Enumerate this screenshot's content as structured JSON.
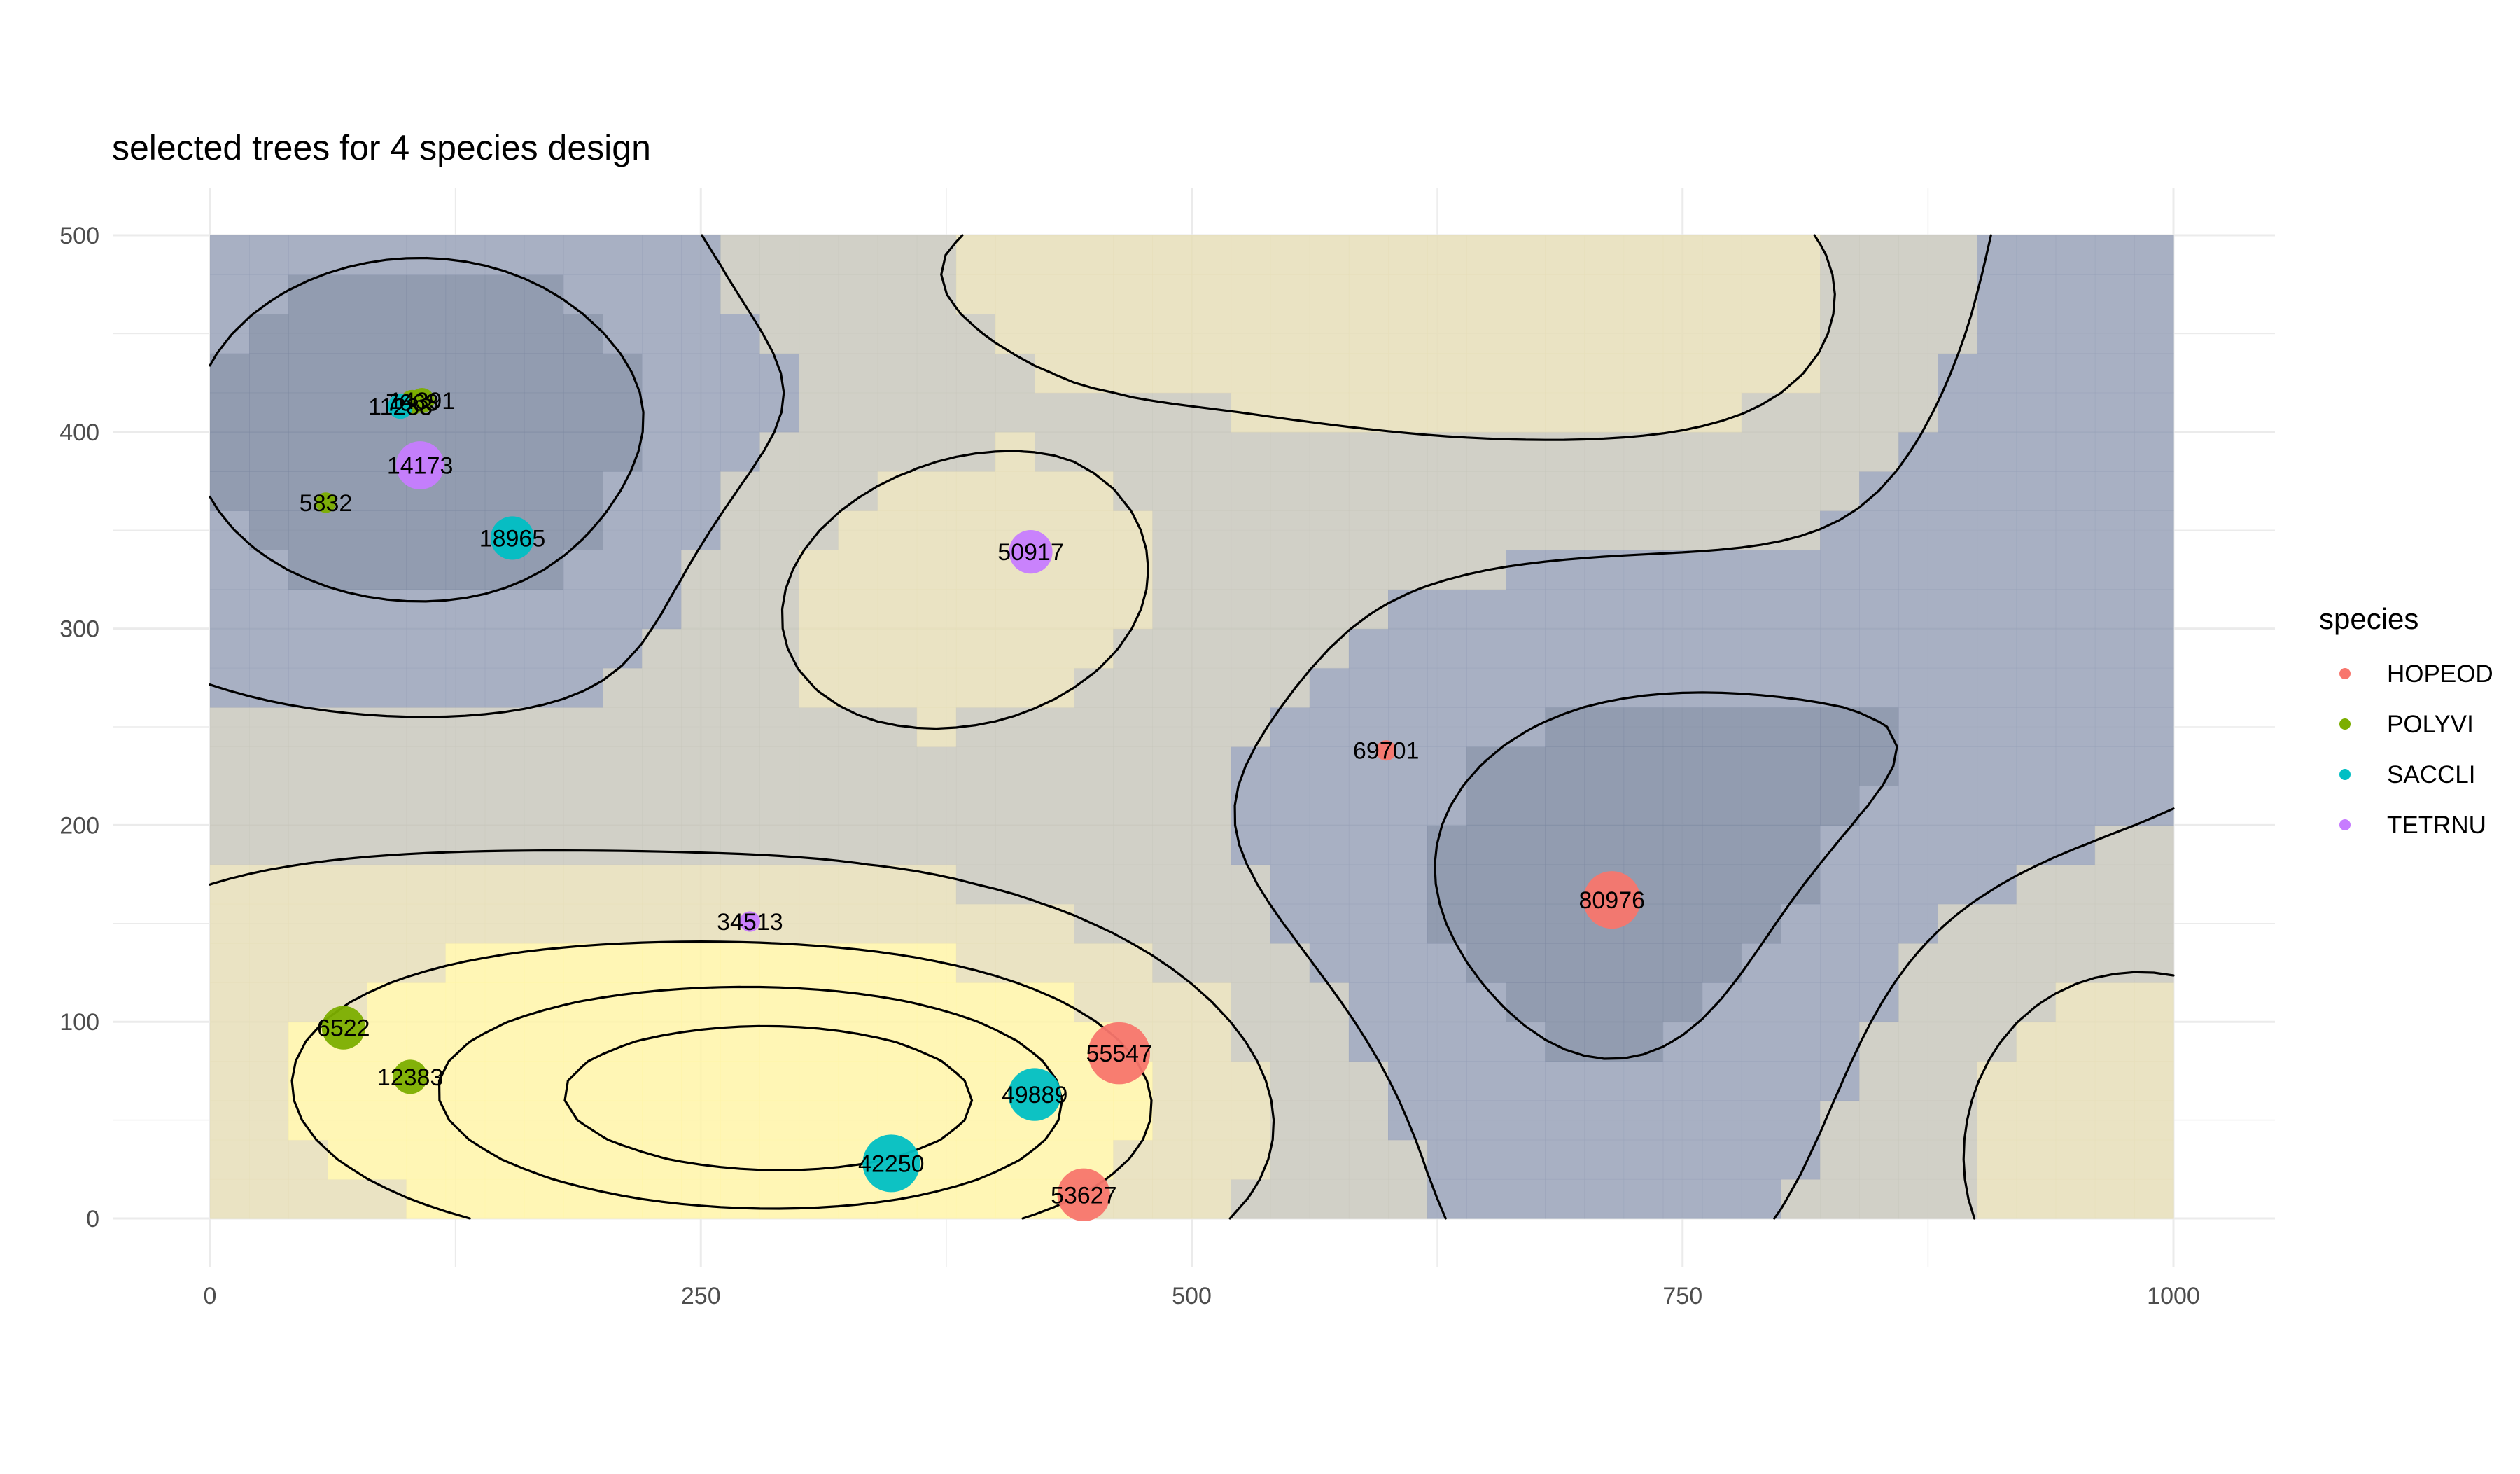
{
  "chart_data": {
    "type": "scatter",
    "title": "selected trees for 4 species design",
    "xlabel": "",
    "ylabel": "",
    "xlim": [
      -100,
      1050
    ],
    "ylim": [
      -25,
      525
    ],
    "x_ticks": [
      0,
      250,
      500,
      750,
      1000
    ],
    "y_ticks": [
      0,
      100,
      200,
      300,
      400,
      500
    ],
    "x_tick_labels": [
      "0",
      "250",
      "500",
      "750",
      "1000"
    ],
    "y_tick_labels": [
      "0",
      "100",
      "200",
      "300",
      "400",
      "500"
    ],
    "grid": true,
    "legend": {
      "title": "species",
      "placement": "right",
      "entries": [
        {
          "name": "HOPEOD",
          "color": "#F8766D"
        },
        {
          "name": "POLYVI",
          "color": "#7CAE00"
        },
        {
          "name": "SACCLI",
          "color": "#00BFC4"
        },
        {
          "name": "TETRNU",
          "color": "#C77CFF"
        }
      ]
    },
    "background": {
      "type": "heatmap",
      "palette": [
        "#7f8ba2",
        "#99a2b9",
        "#c9c8bd",
        "#e6deb8",
        "#fff4a8"
      ],
      "note": "gridded surface with contour lines"
    },
    "points": [
      {
        "id": "7663",
        "species": "POLYVI",
        "x": 103,
        "y": 415,
        "size": 3
      },
      {
        "id": "11283",
        "species": "SACCLI",
        "x": 97,
        "y": 413,
        "size": 3
      },
      {
        "id": "14391",
        "species": "POLYVI",
        "x": 108,
        "y": 416,
        "size": 3
      },
      {
        "id": "14173",
        "species": "TETRNU",
        "x": 107,
        "y": 383,
        "size": 8
      },
      {
        "id": "5832",
        "species": "POLYVI",
        "x": 59,
        "y": 364,
        "size": 2
      },
      {
        "id": "18965",
        "species": "SACCLI",
        "x": 154,
        "y": 346,
        "size": 7
      },
      {
        "id": "50917",
        "species": "TETRNU",
        "x": 418,
        "y": 339,
        "size": 7
      },
      {
        "id": "69701",
        "species": "HOPEOD",
        "x": 599,
        "y": 238,
        "size": 2
      },
      {
        "id": "80976",
        "species": "HOPEOD",
        "x": 714,
        "y": 162,
        "size": 10
      },
      {
        "id": "34513",
        "species": "TETRNU",
        "x": 275,
        "y": 151,
        "size": 2
      },
      {
        "id": "6522",
        "species": "POLYVI",
        "x": 68,
        "y": 97,
        "size": 7
      },
      {
        "id": "12383",
        "species": "POLYVI",
        "x": 102,
        "y": 72,
        "size": 5
      },
      {
        "id": "55547",
        "species": "HOPEOD",
        "x": 463,
        "y": 84,
        "size": 11
      },
      {
        "id": "49889",
        "species": "SACCLI",
        "x": 420,
        "y": 63,
        "size": 9
      },
      {
        "id": "42250",
        "species": "SACCLI",
        "x": 347,
        "y": 28,
        "size": 10
      },
      {
        "id": "53627",
        "species": "HOPEOD",
        "x": 445,
        "y": 12,
        "size": 9
      }
    ]
  }
}
